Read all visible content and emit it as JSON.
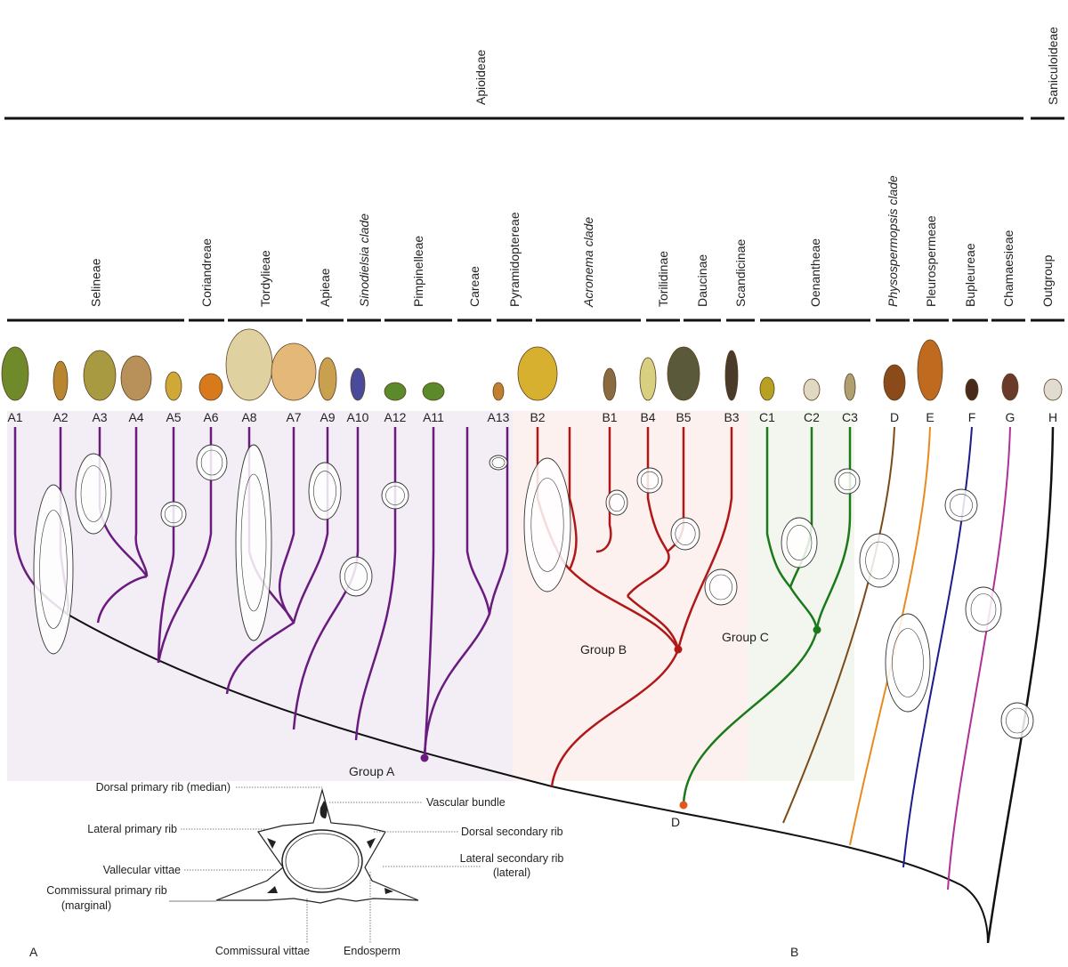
{
  "subfamilies": [
    {
      "label": "Apioideae"
    },
    {
      "label": "Saniculoideae"
    }
  ],
  "tribes": [
    {
      "label": "Selineae",
      "italic": false
    },
    {
      "label": "Coriandreae",
      "italic": false
    },
    {
      "label": "Tordylieae",
      "italic": false
    },
    {
      "label": "Apieae",
      "italic": false
    },
    {
      "label": "Sinodielsia clade",
      "italic": true
    },
    {
      "label": "Pimpinelleae",
      "italic": false
    },
    {
      "label": "Careae",
      "italic": false
    },
    {
      "label": "Pyramidoptereae",
      "italic": false
    },
    {
      "label": "Acronema clade",
      "italic": true
    },
    {
      "label": "Torilidinae",
      "italic": false
    },
    {
      "label": "Daucinae",
      "italic": false
    },
    {
      "label": "Scandicinae",
      "italic": false
    },
    {
      "label": "Oenantheae",
      "italic": false
    },
    {
      "label": "Physospermopsis clade",
      "italic": true
    },
    {
      "label": "Pleurospermeae",
      "italic": false
    },
    {
      "label": "Bupleureae",
      "italic": false
    },
    {
      "label": "Chamaesieae",
      "italic": false
    },
    {
      "label": "Outgroup",
      "italic": false
    }
  ],
  "tips": [
    "A1",
    "A2",
    "A3",
    "A4",
    "A5",
    "A6",
    "A8",
    "A7",
    "A9",
    "A10",
    "A12",
    "A11",
    "A13",
    "B2",
    "B1",
    "B4",
    "B5",
    "B3",
    "C1",
    "C2",
    "C3",
    "D",
    "E",
    "F",
    "G",
    "H"
  ],
  "groups": {
    "a": {
      "label": "Group A",
      "color": "#6a1b7f"
    },
    "b": {
      "label": "Group B",
      "color": "#b01818"
    },
    "c": {
      "label": "Group C",
      "color": "#1a7a1a"
    },
    "d": {
      "label": "D",
      "color": "#e0561c"
    }
  },
  "colors": {
    "e": "#e88a1e",
    "f": "#1c1c8c",
    "g": "#b0309a",
    "d_branch": "#7a4a18",
    "outgroup": "#111111"
  },
  "diagram": {
    "labels": {
      "dorsal_primary": "Dorsal primary rib (median)",
      "vascular": "Vascular bundle",
      "lateral_primary": "Lateral primary rib",
      "dorsal_secondary": "Dorsal secondary rib",
      "vallecular": "Vallecular vittae",
      "lateral_secondary": "Lateral secondary rib",
      "lateral_secondary2": "(lateral)",
      "commissural_primary": "Commissural primary rib",
      "commissural_primary2": "(marginal)",
      "commissural_vittae": "Commissural vittae",
      "endosperm": "Endosperm"
    }
  },
  "panels": {
    "a": "A",
    "b": "B"
  }
}
